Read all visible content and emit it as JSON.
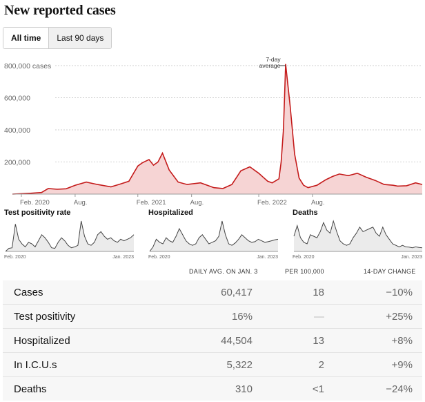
{
  "title": "New reported cases",
  "tabs": {
    "all_time": "All time",
    "last_90": "Last 90 days"
  },
  "chart_data": [
    {
      "type": "area",
      "ylim": [
        0,
        800000
      ],
      "y_ticks": [
        200000,
        400000,
        600000,
        800000
      ],
      "y_tick_labels": [
        "200,000",
        "400,000",
        "600,000",
        "800,000 cases"
      ],
      "x_tick_labels": [
        "Feb. 2020",
        "Aug.",
        "Feb. 2021",
        "Aug.",
        "Feb. 2022",
        "Aug."
      ],
      "annotation": {
        "line1": "7-day",
        "line2": "average"
      },
      "color": "#c41a1a",
      "fill": "#f6d4d4",
      "x": [
        0,
        8,
        13,
        16,
        20,
        24,
        28,
        33,
        38,
        44,
        48,
        52,
        56,
        58,
        61,
        63,
        65,
        67,
        70,
        74,
        78,
        84,
        90,
        94,
        98,
        102,
        106,
        110,
        114,
        116,
        119,
        120,
        121,
        121.5,
        122,
        124,
        126,
        128,
        130,
        132,
        136,
        140,
        143,
        146,
        150,
        154,
        158,
        162,
        166,
        170,
        172,
        176,
        180,
        183
      ],
      "values": [
        0,
        5000,
        10000,
        35000,
        30000,
        33000,
        55000,
        75000,
        60000,
        45000,
        62000,
        80000,
        175000,
        195000,
        215000,
        180000,
        200000,
        255000,
        150000,
        75000,
        60000,
        70000,
        40000,
        35000,
        60000,
        145000,
        170000,
        130000,
        80000,
        70000,
        95000,
        200000,
        400000,
        600000,
        810000,
        550000,
        250000,
        100000,
        55000,
        40000,
        55000,
        90000,
        110000,
        125000,
        115000,
        130000,
        105000,
        85000,
        60000,
        55000,
        50000,
        52000,
        70000,
        60000
      ]
    },
    {
      "type": "area",
      "title": "Test positivity rate",
      "x_tick_labels": [
        "Feb. 2020",
        "Jan. 2023"
      ],
      "values": [
        0,
        0.1,
        0.12,
        0.9,
        0.4,
        0.25,
        0.15,
        0.3,
        0.25,
        0.15,
        0.35,
        0.55,
        0.45,
        0.3,
        0.12,
        0.1,
        0.3,
        0.45,
        0.35,
        0.2,
        0.12,
        0.15,
        0.2,
        1.0,
        0.5,
        0.25,
        0.2,
        0.3,
        0.55,
        0.65,
        0.5,
        0.4,
        0.45,
        0.35,
        0.3,
        0.4,
        0.35,
        0.4,
        0.45,
        0.55
      ]
    },
    {
      "type": "area",
      "title": "Hospitalized",
      "x_tick_labels": [
        "Feb. 2020",
        "Jan. 2023"
      ],
      "values": [
        0,
        0.15,
        0.4,
        0.3,
        0.25,
        0.45,
        0.35,
        0.3,
        0.5,
        0.75,
        0.55,
        0.35,
        0.25,
        0.2,
        0.25,
        0.45,
        0.55,
        0.4,
        0.25,
        0.3,
        0.35,
        0.5,
        1.0,
        0.55,
        0.25,
        0.2,
        0.28,
        0.4,
        0.55,
        0.45,
        0.35,
        0.3,
        0.32,
        0.4,
        0.35,
        0.3,
        0.32,
        0.35,
        0.38,
        0.4
      ]
    },
    {
      "type": "area",
      "title": "Deaths",
      "x_tick_labels": [
        "Feb. 2020",
        "Jan. 2023"
      ],
      "values": [
        0.5,
        0.85,
        0.45,
        0.3,
        0.25,
        0.55,
        0.5,
        0.45,
        0.65,
        0.95,
        0.7,
        0.6,
        1.0,
        0.65,
        0.35,
        0.25,
        0.2,
        0.25,
        0.45,
        0.6,
        0.8,
        0.65,
        0.7,
        0.75,
        0.8,
        0.6,
        0.5,
        0.8,
        0.55,
        0.4,
        0.25,
        0.2,
        0.15,
        0.2,
        0.15,
        0.14,
        0.12,
        0.15,
        0.13,
        0.12
      ]
    }
  ],
  "stats": {
    "headers": {
      "avg": "DAILY AVG. ON JAN. 3",
      "per": "PER 100,000",
      "change": "14-DAY CHANGE"
    },
    "rows": [
      {
        "label": "Cases",
        "avg": "60,417",
        "per": "18",
        "change": "−10%"
      },
      {
        "label": "Test positivity",
        "avg": "16%",
        "per": "—",
        "change": "+25%"
      },
      {
        "label": "Hospitalized",
        "avg": "44,504",
        "per": "13",
        "change": "+8%"
      },
      {
        "label": "In I.C.U.s",
        "avg": "5,322",
        "per": "2",
        "change": "+9%"
      },
      {
        "label": "Deaths",
        "avg": "310",
        "per": "<1",
        "change": "−24%"
      }
    ]
  }
}
